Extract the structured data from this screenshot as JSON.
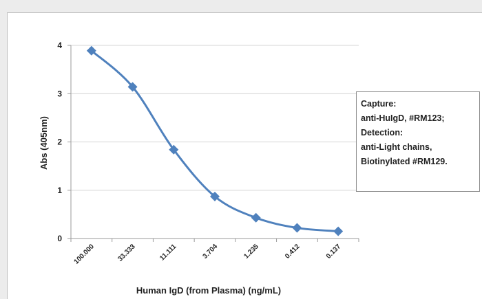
{
  "chart_data": {
    "type": "line",
    "title": "",
    "xlabel": "Human IgD (from Plasma) (ng/mL)",
    "ylabel": "Abs (405nm)",
    "ylim": [
      0,
      4
    ],
    "yticks": [
      "0",
      "1",
      "2",
      "3",
      "4"
    ],
    "categories": [
      "100.000",
      "33.333",
      "11.111",
      "3.704",
      "1.235",
      "0.412",
      "0.137"
    ],
    "series": [
      {
        "values": [
          3.89,
          3.14,
          1.84,
          0.87,
          0.43,
          0.22,
          0.15
        ],
        "color": "#4f81bd"
      }
    ],
    "grid": "horizontal",
    "annotation": [
      "Capture:",
      "anti-HuIgD, #RM123;",
      "Detection:",
      "anti-Light chains,",
      "Biotinylated #RM129."
    ]
  }
}
